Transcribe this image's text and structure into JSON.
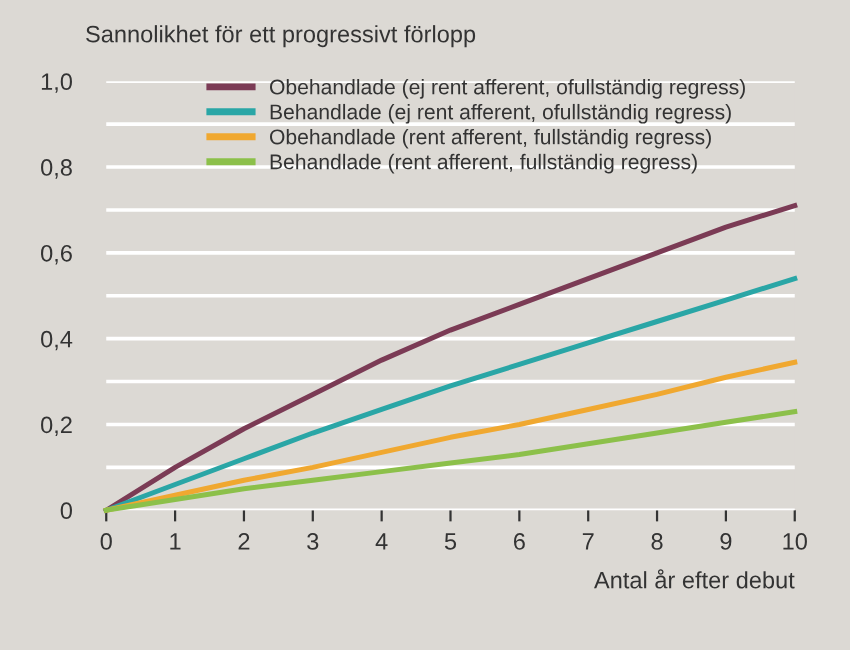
{
  "chart_data": {
    "type": "line",
    "title": "Sannolikhet för ett progressivt förlopp",
    "xlabel": "Antal år efter debut",
    "x": [
      0,
      1,
      2,
      3,
      4,
      5,
      6,
      7,
      8,
      9,
      10
    ],
    "series": [
      {
        "name": "Obehandlade (ej rent afferent, ofullständig regress)",
        "color": "#7b3b55",
        "values": [
          0,
          0.1,
          0.19,
          0.27,
          0.35,
          0.42,
          0.48,
          0.54,
          0.6,
          0.66,
          0.71
        ]
      },
      {
        "name": "Behandlade (ej rent afferent, ofullständig regress)",
        "color": "#2aa6a6",
        "values": [
          0,
          0.06,
          0.12,
          0.18,
          0.235,
          0.29,
          0.34,
          0.39,
          0.44,
          0.49,
          0.54
        ]
      },
      {
        "name": "Obehandlade (rent afferent, fullständig regress)",
        "color": "#f0a830",
        "values": [
          0,
          0.035,
          0.07,
          0.1,
          0.135,
          0.17,
          0.2,
          0.235,
          0.27,
          0.31,
          0.345
        ]
      },
      {
        "name": "Behandlade (rent afferent, fullständig regress)",
        "color": "#8cc04a",
        "values": [
          0,
          0.025,
          0.05,
          0.07,
          0.09,
          0.11,
          0.13,
          0.155,
          0.18,
          0.205,
          0.23
        ]
      }
    ],
    "xlim": [
      0,
      10
    ],
    "xticks": [
      0,
      1,
      2,
      3,
      4,
      5,
      6,
      7,
      8,
      9,
      10
    ],
    "ylim": [
      0,
      1.0
    ],
    "yticks": [
      {
        "value": 0,
        "label": "0"
      },
      {
        "value": 0.1,
        "label": null
      },
      {
        "value": 0.2,
        "label": "0,2"
      },
      {
        "value": 0.3,
        "label": null
      },
      {
        "value": 0.4,
        "label": "0,4"
      },
      {
        "value": 0.5,
        "label": null
      },
      {
        "value": 0.6,
        "label": "0,6"
      },
      {
        "value": 0.7,
        "label": null
      },
      {
        "value": 0.8,
        "label": "0,8"
      },
      {
        "value": 0.9,
        "label": null
      },
      {
        "value": 1.0,
        "label": "1,0"
      }
    ],
    "grid": "y",
    "legend": "top",
    "line_style": "solid",
    "marker": "none"
  }
}
